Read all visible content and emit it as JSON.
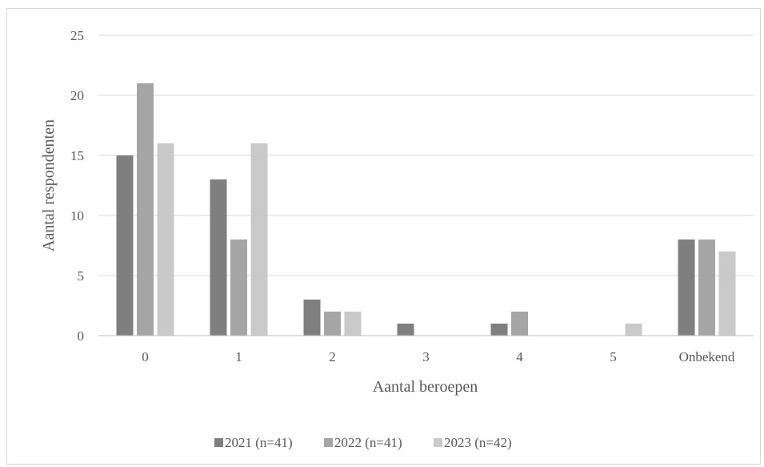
{
  "chart_data": {
    "type": "bar",
    "title": "",
    "xlabel": "Aantal beroepen",
    "ylabel": "Aantal respondenten",
    "categories": [
      "0",
      "1",
      "2",
      "3",
      "4",
      "5",
      "Onbekend"
    ],
    "series": [
      {
        "name": "2021 (n=41)",
        "color": "#7f7f7f",
        "values": [
          15,
          13,
          3,
          1,
          1,
          0,
          8
        ]
      },
      {
        "name": "2022 (n=41)",
        "color": "#a5a5a5",
        "values": [
          21,
          8,
          2,
          0,
          2,
          0,
          8
        ]
      },
      {
        "name": "2023 (n=42)",
        "color": "#c9c9c9",
        "values": [
          16,
          16,
          2,
          0,
          0,
          1,
          7
        ]
      }
    ],
    "ylim": [
      0,
      25
    ],
    "yticks": [
      0,
      5,
      10,
      15,
      20,
      25
    ],
    "grid": true,
    "legend_position": "bottom"
  }
}
